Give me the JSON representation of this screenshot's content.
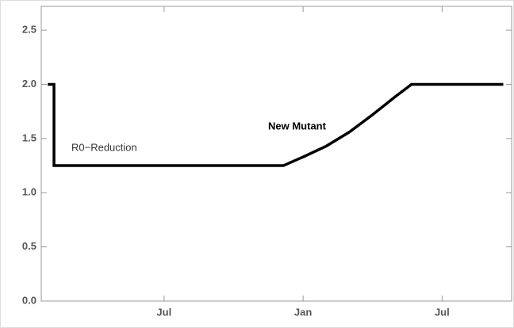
{
  "chart_data": {
    "type": "line",
    "x": [
      0.98,
      1.25,
      1.25,
      11.15,
      12,
      13,
      14,
      15,
      16,
      16.68,
      20.64
    ],
    "series": [
      {
        "color": "#000000",
        "values": [
          2.0,
          2.0,
          1.25,
          1.25,
          1.33,
          1.43,
          1.56,
          1.72,
          1.89,
          2.0,
          2.0
        ]
      }
    ],
    "xlim": [
      0.7,
      21
    ],
    "xticks": [
      {
        "value": 6,
        "label": "Jul"
      },
      {
        "value": 12,
        "label": "Jan"
      },
      {
        "value": 18,
        "label": "Jul"
      }
    ],
    "ylim": [
      0,
      2.72
    ],
    "yticks": [
      {
        "value": 0,
        "label": "0.0"
      },
      0.5,
      {
        "value": 1,
        "label": "1.0"
      },
      1.5,
      {
        "value": 2,
        "label": "2.0"
      },
      2.5
    ],
    "annotations": [
      "R0−Reduction",
      "New Mutant"
    ]
  }
}
